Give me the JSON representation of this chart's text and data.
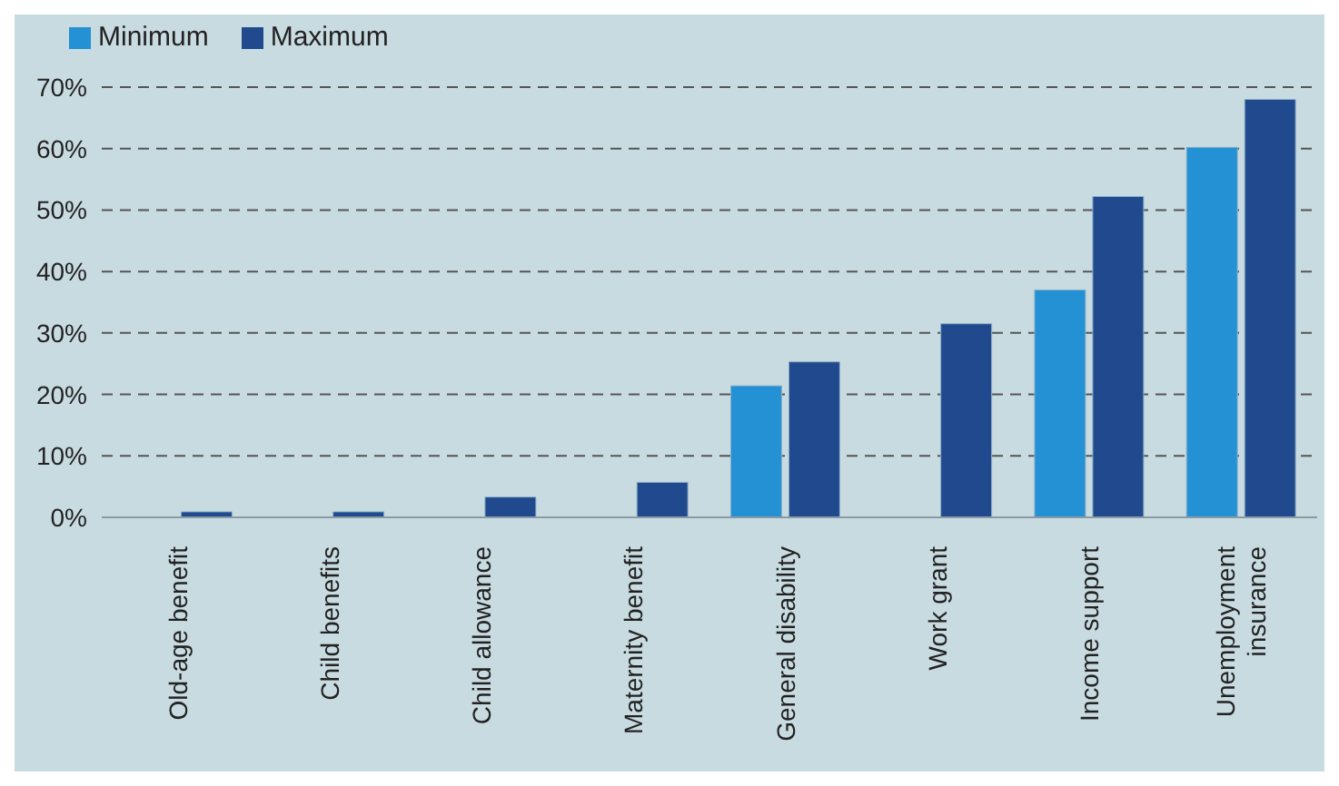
{
  "chart_data": {
    "type": "bar",
    "categories": [
      "Old-age benefit",
      "Child benefits",
      "Child allowance",
      "Maternity benefit",
      "General disability",
      "Work grant",
      "Income support",
      "Unemployment insurance"
    ],
    "series": [
      {
        "name": "Minimum",
        "color": "#2391d4",
        "values": [
          null,
          null,
          null,
          null,
          21.4,
          null,
          37,
          60.2
        ]
      },
      {
        "name": "Maximum",
        "color": "#214a8e",
        "values": [
          0.9,
          0.9,
          3.3,
          5.7,
          25.3,
          31.5,
          52.2,
          68
        ]
      }
    ],
    "ylim": [
      0,
      70
    ],
    "yticks": [
      {
        "value": 0,
        "label": "0%"
      },
      {
        "value": 10,
        "label": "10%"
      },
      {
        "value": 20,
        "label": "20%"
      },
      {
        "value": 30,
        "label": "30%"
      },
      {
        "value": 40,
        "label": "40%"
      },
      {
        "value": 50,
        "label": "50%"
      },
      {
        "value": 60,
        "label": "60%"
      },
      {
        "value": 70,
        "label": "70%"
      }
    ],
    "grid": "y",
    "legend": "top left"
  }
}
